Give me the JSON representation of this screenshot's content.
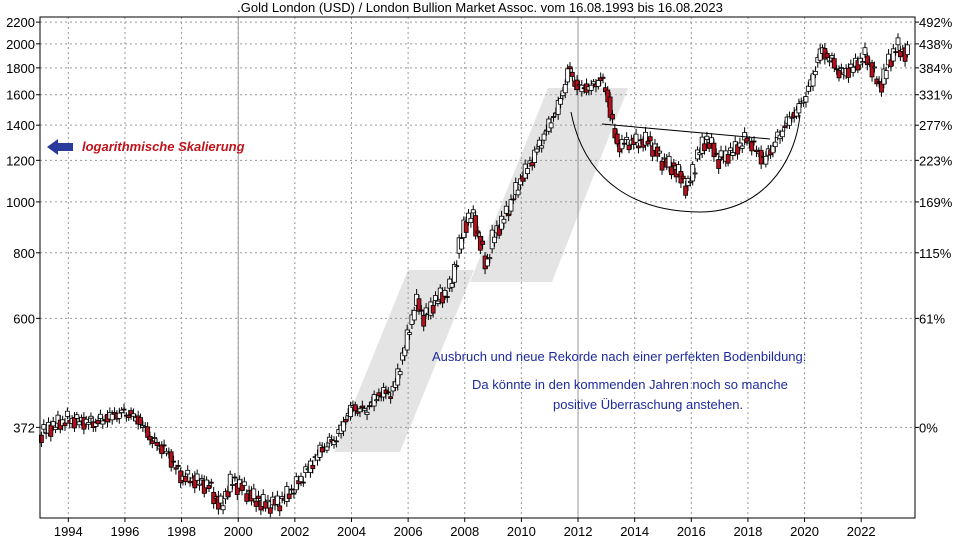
{
  "chart_data": {
    "type": "candlestick",
    "title": ".Gold London (USD) / London Bullion Market Assoc. vom 16.08.1993 bis 16.08.2023",
    "y_scale": "log",
    "ylim": [
      250,
      2250
    ],
    "xlim": [
      1993.0,
      2023.9
    ],
    "left_ticks": [
      {
        "value": 372,
        "label": "372"
      },
      {
        "value": 600,
        "label": "600"
      },
      {
        "value": 800,
        "label": "800"
      },
      {
        "value": 1000,
        "label": "1000"
      },
      {
        "value": 1200,
        "label": "1200"
      },
      {
        "value": 1400,
        "label": "1400"
      },
      {
        "value": 1600,
        "label": "1600"
      },
      {
        "value": 1800,
        "label": "1800"
      },
      {
        "value": 2000,
        "label": "2000"
      },
      {
        "value": 2200,
        "label": "2200"
      }
    ],
    "right_ticks": [
      {
        "value": 372,
        "label": "0%"
      },
      {
        "value": 600,
        "label": "61%"
      },
      {
        "value": 800,
        "label": "115%"
      },
      {
        "value": 1000,
        "label": "169%"
      },
      {
        "value": 1200,
        "label": "223%"
      },
      {
        "value": 1400,
        "label": "277%"
      },
      {
        "value": 1600,
        "label": "331%"
      },
      {
        "value": 1800,
        "label": "384%"
      },
      {
        "value": 2000,
        "label": "438%"
      },
      {
        "value": 2200,
        "label": "492%"
      }
    ],
    "x_ticks": [
      1994,
      1996,
      1998,
      2000,
      2002,
      2004,
      2006,
      2008,
      2010,
      2012,
      2014,
      2016,
      2018,
      2020,
      2022
    ],
    "grid": true,
    "price_path": [
      [
        1993.0,
        360
      ],
      [
        1993.5,
        375
      ],
      [
        1994.0,
        385
      ],
      [
        1994.5,
        382
      ],
      [
        1995.0,
        380
      ],
      [
        1995.5,
        390
      ],
      [
        1996.0,
        398
      ],
      [
        1996.5,
        385
      ],
      [
        1997.0,
        350
      ],
      [
        1997.5,
        335
      ],
      [
        1998.0,
        300
      ],
      [
        1998.5,
        295
      ],
      [
        1999.0,
        288
      ],
      [
        1999.4,
        262
      ],
      [
        1999.8,
        295
      ],
      [
        2000.2,
        285
      ],
      [
        2000.6,
        272
      ],
      [
        2001.0,
        265
      ],
      [
        2001.5,
        268
      ],
      [
        2002.0,
        285
      ],
      [
        2002.5,
        310
      ],
      [
        2003.0,
        340
      ],
      [
        2003.5,
        355
      ],
      [
        2004.0,
        405
      ],
      [
        2004.5,
        400
      ],
      [
        2005.0,
        430
      ],
      [
        2005.5,
        435
      ],
      [
        2006.0,
        550
      ],
      [
        2006.3,
        650
      ],
      [
        2006.6,
        600
      ],
      [
        2007.0,
        650
      ],
      [
        2007.5,
        680
      ],
      [
        2008.0,
        900
      ],
      [
        2008.3,
        950
      ],
      [
        2008.8,
        750
      ],
      [
        2009.0,
        850
      ],
      [
        2009.5,
        950
      ],
      [
        2010.0,
        1100
      ],
      [
        2010.5,
        1230
      ],
      [
        2011.0,
        1400
      ],
      [
        2011.4,
        1550
      ],
      [
        2011.7,
        1800
      ],
      [
        2012.0,
        1650
      ],
      [
        2012.5,
        1650
      ],
      [
        2012.8,
        1720
      ],
      [
        2013.0,
        1650
      ],
      [
        2013.4,
        1280
      ],
      [
        2013.8,
        1300
      ],
      [
        2014.2,
        1300
      ],
      [
        2014.5,
        1310
      ],
      [
        2015.0,
        1200
      ],
      [
        2015.5,
        1150
      ],
      [
        2015.9,
        1060
      ],
      [
        2016.3,
        1250
      ],
      [
        2016.6,
        1320
      ],
      [
        2017.0,
        1200
      ],
      [
        2017.5,
        1250
      ],
      [
        2018.0,
        1320
      ],
      [
        2018.6,
        1200
      ],
      [
        2019.0,
        1300
      ],
      [
        2019.4,
        1420
      ],
      [
        2019.8,
        1500
      ],
      [
        2020.2,
        1650
      ],
      [
        2020.6,
        1950
      ],
      [
        2021.0,
        1850
      ],
      [
        2021.3,
        1750
      ],
      [
        2021.7,
        1800
      ],
      [
        2022.2,
        1900
      ],
      [
        2022.7,
        1650
      ],
      [
        2023.0,
        1850
      ],
      [
        2023.3,
        1980
      ],
      [
        2023.6,
        1910
      ]
    ],
    "annotations": {
      "log_note": "logarithmische Skalierung",
      "comment_line1": "Ausbruch und neue Rekorde nach einer perfekten Bodenbildung:",
      "comment_line2": "Da könnte in den kommenden Jahren noch so manche",
      "comment_line3": "positive Überraschung anstehen."
    },
    "colors": {
      "up": "#ffffff",
      "down": "#b5101b",
      "grid": "#999999",
      "arrow": "#2b3c9c",
      "watermark": "#e3e3e3"
    }
  }
}
